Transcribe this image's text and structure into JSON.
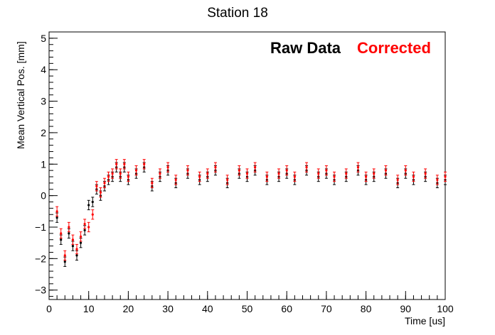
{
  "chart_data": {
    "type": "scatter",
    "title": "Station 18",
    "xlabel": "Time [us]",
    "ylabel": "Mean Vertical Pos. [mm]",
    "xlim": [
      0,
      100
    ],
    "ylim": [
      -3.3,
      5.2
    ],
    "x_ticks": [
      "0",
      "10",
      "20",
      "30",
      "40",
      "50",
      "60",
      "70",
      "80",
      "90",
      "100"
    ],
    "y_ticks": [
      "−3",
      "−2",
      "−1",
      "0",
      "1",
      "2",
      "3",
      "4",
      "5"
    ],
    "legend_placement": "top-right",
    "grid": false,
    "series": [
      {
        "name": "Raw Data",
        "color": "#000000",
        "x": [
          2,
          3,
          4,
          5,
          6,
          7,
          8,
          9,
          10,
          11,
          12,
          13,
          14,
          15,
          16,
          17,
          18,
          19,
          20,
          22,
          24,
          26,
          28,
          30,
          32,
          35,
          38,
          40,
          42,
          45,
          48,
          50,
          52,
          55,
          58,
          60,
          62,
          65,
          68,
          70,
          72,
          75,
          78,
          80,
          82,
          85,
          88,
          90,
          92,
          95,
          98,
          100
        ],
        "y": [
          -0.7,
          -1.4,
          -2.1,
          -1.2,
          -1.6,
          -1.9,
          -1.5,
          -1.1,
          -0.3,
          -0.2,
          0.2,
          0.0,
          0.3,
          0.5,
          0.6,
          0.9,
          0.6,
          0.9,
          0.5,
          0.7,
          0.9,
          0.3,
          0.6,
          0.8,
          0.4,
          0.7,
          0.5,
          0.6,
          0.8,
          0.4,
          0.7,
          0.6,
          0.8,
          0.5,
          0.6,
          0.7,
          0.5,
          0.8,
          0.6,
          0.7,
          0.5,
          0.6,
          0.8,
          0.5,
          0.6,
          0.7,
          0.4,
          0.7,
          0.5,
          0.6,
          0.4,
          0.5
        ],
        "error": 0.15
      },
      {
        "name": "Corrected",
        "color": "#ff0000",
        "x": [
          2,
          3,
          4,
          5,
          6,
          7,
          8,
          9,
          10,
          11,
          12,
          13,
          14,
          15,
          16,
          17,
          18,
          19,
          20,
          22,
          24,
          26,
          28,
          30,
          32,
          35,
          38,
          40,
          42,
          45,
          48,
          50,
          52,
          55,
          58,
          60,
          62,
          65,
          68,
          70,
          72,
          75,
          78,
          80,
          82,
          85,
          88,
          90,
          92,
          95,
          98,
          100
        ],
        "y": [
          -0.5,
          -1.2,
          -1.9,
          -1.0,
          -1.4,
          -1.7,
          -1.3,
          -0.9,
          -1.0,
          -0.6,
          0.3,
          0.1,
          0.4,
          0.6,
          0.7,
          1.0,
          0.7,
          1.0,
          0.6,
          0.8,
          1.0,
          0.4,
          0.7,
          0.9,
          0.5,
          0.8,
          0.6,
          0.7,
          0.9,
          0.5,
          0.8,
          0.7,
          0.9,
          0.6,
          0.7,
          0.8,
          0.6,
          0.9,
          0.7,
          0.8,
          0.6,
          0.7,
          0.9,
          0.6,
          0.7,
          0.8,
          0.5,
          0.8,
          0.6,
          0.7,
          0.5,
          0.6
        ],
        "error": 0.15
      }
    ]
  }
}
